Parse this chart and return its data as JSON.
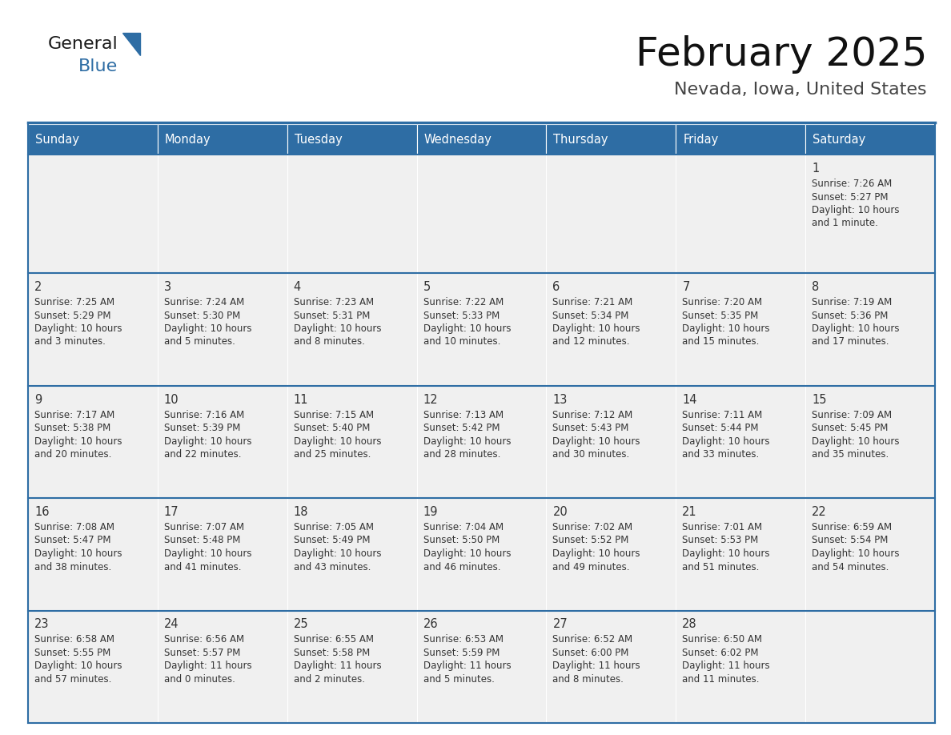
{
  "title": "February 2025",
  "subtitle": "Nevada, Iowa, United States",
  "header_bg": "#2e6da4",
  "header_text_color": "#ffffff",
  "cell_bg": "#f0f0f0",
  "border_color": "#2e6da4",
  "text_color": "#333333",
  "day_number_color": "#333333",
  "day_headers": [
    "Sunday",
    "Monday",
    "Tuesday",
    "Wednesday",
    "Thursday",
    "Friday",
    "Saturday"
  ],
  "days": [
    {
      "day": 1,
      "col": 6,
      "row": 0,
      "sunrise": "7:26 AM",
      "sunset": "5:27 PM",
      "daylight": "10 hours and 1 minute."
    },
    {
      "day": 2,
      "col": 0,
      "row": 1,
      "sunrise": "7:25 AM",
      "sunset": "5:29 PM",
      "daylight": "10 hours and 3 minutes."
    },
    {
      "day": 3,
      "col": 1,
      "row": 1,
      "sunrise": "7:24 AM",
      "sunset": "5:30 PM",
      "daylight": "10 hours and 5 minutes."
    },
    {
      "day": 4,
      "col": 2,
      "row": 1,
      "sunrise": "7:23 AM",
      "sunset": "5:31 PM",
      "daylight": "10 hours and 8 minutes."
    },
    {
      "day": 5,
      "col": 3,
      "row": 1,
      "sunrise": "7:22 AM",
      "sunset": "5:33 PM",
      "daylight": "10 hours and 10 minutes."
    },
    {
      "day": 6,
      "col": 4,
      "row": 1,
      "sunrise": "7:21 AM",
      "sunset": "5:34 PM",
      "daylight": "10 hours and 12 minutes."
    },
    {
      "day": 7,
      "col": 5,
      "row": 1,
      "sunrise": "7:20 AM",
      "sunset": "5:35 PM",
      "daylight": "10 hours and 15 minutes."
    },
    {
      "day": 8,
      "col": 6,
      "row": 1,
      "sunrise": "7:19 AM",
      "sunset": "5:36 PM",
      "daylight": "10 hours and 17 minutes."
    },
    {
      "day": 9,
      "col": 0,
      "row": 2,
      "sunrise": "7:17 AM",
      "sunset": "5:38 PM",
      "daylight": "10 hours and 20 minutes."
    },
    {
      "day": 10,
      "col": 1,
      "row": 2,
      "sunrise": "7:16 AM",
      "sunset": "5:39 PM",
      "daylight": "10 hours and 22 minutes."
    },
    {
      "day": 11,
      "col": 2,
      "row": 2,
      "sunrise": "7:15 AM",
      "sunset": "5:40 PM",
      "daylight": "10 hours and 25 minutes."
    },
    {
      "day": 12,
      "col": 3,
      "row": 2,
      "sunrise": "7:13 AM",
      "sunset": "5:42 PM",
      "daylight": "10 hours and 28 minutes."
    },
    {
      "day": 13,
      "col": 4,
      "row": 2,
      "sunrise": "7:12 AM",
      "sunset": "5:43 PM",
      "daylight": "10 hours and 30 minutes."
    },
    {
      "day": 14,
      "col": 5,
      "row": 2,
      "sunrise": "7:11 AM",
      "sunset": "5:44 PM",
      "daylight": "10 hours and 33 minutes."
    },
    {
      "day": 15,
      "col": 6,
      "row": 2,
      "sunrise": "7:09 AM",
      "sunset": "5:45 PM",
      "daylight": "10 hours and 35 minutes."
    },
    {
      "day": 16,
      "col": 0,
      "row": 3,
      "sunrise": "7:08 AM",
      "sunset": "5:47 PM",
      "daylight": "10 hours and 38 minutes."
    },
    {
      "day": 17,
      "col": 1,
      "row": 3,
      "sunrise": "7:07 AM",
      "sunset": "5:48 PM",
      "daylight": "10 hours and 41 minutes."
    },
    {
      "day": 18,
      "col": 2,
      "row": 3,
      "sunrise": "7:05 AM",
      "sunset": "5:49 PM",
      "daylight": "10 hours and 43 minutes."
    },
    {
      "day": 19,
      "col": 3,
      "row": 3,
      "sunrise": "7:04 AM",
      "sunset": "5:50 PM",
      "daylight": "10 hours and 46 minutes."
    },
    {
      "day": 20,
      "col": 4,
      "row": 3,
      "sunrise": "7:02 AM",
      "sunset": "5:52 PM",
      "daylight": "10 hours and 49 minutes."
    },
    {
      "day": 21,
      "col": 5,
      "row": 3,
      "sunrise": "7:01 AM",
      "sunset": "5:53 PM",
      "daylight": "10 hours and 51 minutes."
    },
    {
      "day": 22,
      "col": 6,
      "row": 3,
      "sunrise": "6:59 AM",
      "sunset": "5:54 PM",
      "daylight": "10 hours and 54 minutes."
    },
    {
      "day": 23,
      "col": 0,
      "row": 4,
      "sunrise": "6:58 AM",
      "sunset": "5:55 PM",
      "daylight": "10 hours and 57 minutes."
    },
    {
      "day": 24,
      "col": 1,
      "row": 4,
      "sunrise": "6:56 AM",
      "sunset": "5:57 PM",
      "daylight": "11 hours and 0 minutes."
    },
    {
      "day": 25,
      "col": 2,
      "row": 4,
      "sunrise": "6:55 AM",
      "sunset": "5:58 PM",
      "daylight": "11 hours and 2 minutes."
    },
    {
      "day": 26,
      "col": 3,
      "row": 4,
      "sunrise": "6:53 AM",
      "sunset": "5:59 PM",
      "daylight": "11 hours and 5 minutes."
    },
    {
      "day": 27,
      "col": 4,
      "row": 4,
      "sunrise": "6:52 AM",
      "sunset": "6:00 PM",
      "daylight": "11 hours and 8 minutes."
    },
    {
      "day": 28,
      "col": 5,
      "row": 4,
      "sunrise": "6:50 AM",
      "sunset": "6:02 PM",
      "daylight": "11 hours and 11 minutes."
    }
  ],
  "num_rows": 5,
  "logo_text_general": "General",
  "logo_text_blue": "Blue",
  "logo_color_general": "#1a1a1a",
  "logo_color_blue": "#2e6da4"
}
